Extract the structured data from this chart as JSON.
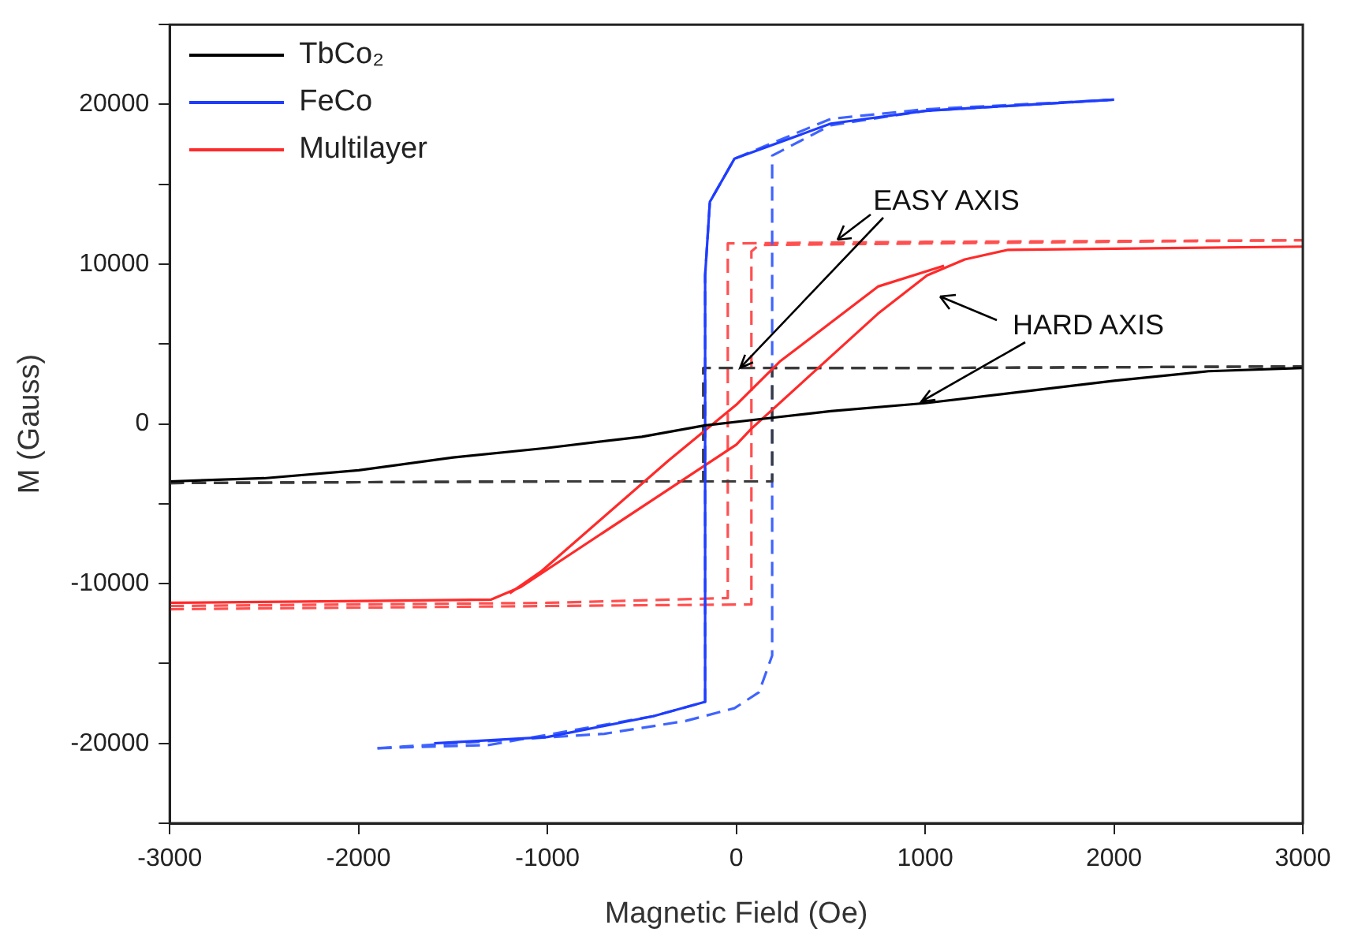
{
  "chart_data": {
    "type": "line",
    "xlabel": "Magnetic Field (Oe)",
    "ylabel": "M (Gauss)",
    "xlim": [
      -3000,
      3000
    ],
    "xticks": [
      -3000,
      -2000,
      -1000,
      0,
      1000,
      2000,
      3000
    ],
    "ylim": [
      -25000,
      25000
    ],
    "yticks": [
      {
        "value": -25000,
        "label": null
      },
      -20000,
      {
        "value": -15000,
        "label": null
      },
      -10000,
      {
        "value": -5000,
        "label": null
      },
      0,
      {
        "value": 5000,
        "label": null
      },
      10000,
      {
        "value": 15000,
        "label": null
      },
      20000,
      {
        "value": 25000,
        "label": null
      }
    ],
    "grid": false,
    "legend": "top left",
    "marker": "none",
    "annotations": [
      {
        "text": "EASY AXIS",
        "x": 20,
        "y": 3500
      },
      {
        "text": "HARD AXIS",
        "x": 980,
        "y": 1400
      }
    ],
    "series": [
      {
        "name": "TbCo₂",
        "color": "#000000",
        "line_style": "solid",
        "x": [
          -3000,
          -2500,
          -2000,
          -1500,
          -1000,
          -500,
          -170,
          200,
          500,
          1000,
          1500,
          2000,
          2500,
          3000
        ],
        "values": [
          -3600,
          -3400,
          -2900,
          -2100,
          -1500,
          -800,
          -100,
          400,
          800,
          1300,
          2000,
          2700,
          3300,
          3500
        ]
      },
      {
        "name": "FeCo",
        "color": "#1f3dff",
        "line_style": "solid",
        "x": [
          -1600,
          -1000,
          -440,
          -165,
          -165,
          -140,
          -10,
          500,
          1000,
          2000
        ],
        "values": [
          -20000,
          -19600,
          -18300,
          -17400,
          9300,
          13900,
          16600,
          18800,
          19600,
          20300
        ]
      },
      {
        "name": "Multilayer",
        "color": "#ff2a2a",
        "line_style": "solid",
        "x": [
          -3000,
          -1300,
          -1140,
          0,
          80,
          750,
          1010,
          1210,
          1440,
          3000
        ],
        "values": [
          -11200,
          -11000,
          -10200,
          -1300,
          -300,
          6900,
          9300,
          10300,
          10900,
          11100
        ]
      },
      {
        "color": "#ff2a2a",
        "line_style": "solid",
        "x": [
          -1200,
          -1030,
          -360,
          0,
          230,
          750,
          1100
        ],
        "values": [
          -10600,
          -9200,
          -2300,
          1200,
          3900,
          8600,
          9900
        ]
      },
      {
        "color": "#3a3a3a",
        "line_style": "dashed",
        "x": [
          -3000,
          -1000,
          190,
          190,
          1000,
          3000
        ],
        "values": [
          -3700,
          -3600,
          -3600,
          3500,
          3500,
          3600
        ]
      },
      {
        "color": "#3a3a3a",
        "line_style": "dashed",
        "x": [
          -3000,
          -1000,
          -175,
          -175,
          1000,
          3000
        ],
        "values": [
          -3700,
          -3600,
          -3600,
          3500,
          3500,
          3600
        ]
      },
      {
        "color": "#3f63ff",
        "line_style": "dashed",
        "x": [
          -1900,
          -700,
          -270,
          -10,
          120,
          190,
          190,
          500,
          1000,
          2000
        ],
        "values": [
          -20300,
          -19400,
          -18600,
          -17800,
          -16800,
          -14500,
          16800,
          18700,
          19600,
          20300
        ]
      },
      {
        "color": "#3f63ff",
        "line_style": "dashed",
        "x": [
          -1900,
          -1310,
          -440,
          -165,
          -165,
          -140,
          -10,
          500,
          1000,
          2000
        ],
        "values": [
          -20300,
          -20100,
          -18300,
          -17400,
          9300,
          13900,
          16600,
          19100,
          19700,
          20300
        ]
      },
      {
        "color": "#ff5050",
        "line_style": "dashed",
        "x": [
          -3000,
          -1000,
          80,
          80,
          120,
          1000,
          3000
        ],
        "values": [
          -11600,
          -11400,
          -11300,
          10800,
          11200,
          11300,
          11500
        ]
      },
      {
        "color": "#ff5050",
        "line_style": "dashed",
        "x": [
          -3000,
          -1000,
          -45,
          -45,
          1000,
          3000
        ],
        "values": [
          -11400,
          -11200,
          -10900,
          11300,
          11400,
          11500
        ]
      }
    ]
  }
}
